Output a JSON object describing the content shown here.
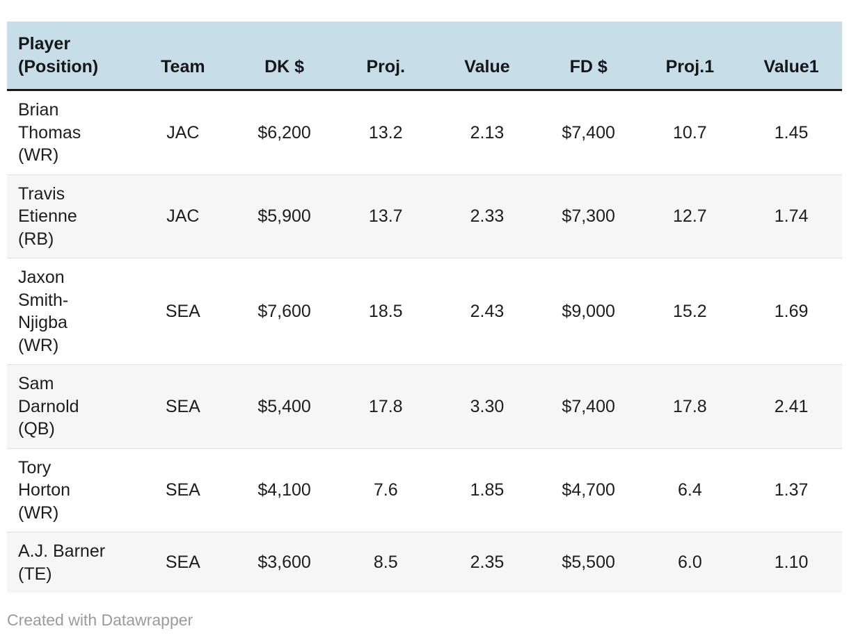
{
  "chart_data": {
    "type": "table",
    "columns": [
      "Player (Position)",
      "Team",
      "DK $",
      "Proj.",
      "Value",
      "FD $",
      "Proj.1",
      "Value1"
    ],
    "rows": [
      [
        "Brian Thomas (WR)",
        "JAC",
        "$6,200",
        "13.2",
        "2.13",
        "$7,400",
        "10.7",
        "1.45"
      ],
      [
        "Travis Etienne (RB)",
        "JAC",
        "$5,900",
        "13.7",
        "2.33",
        "$7,300",
        "12.7",
        "1.74"
      ],
      [
        "Jaxon Smith-Njigba (WR)",
        "SEA",
        "$7,600",
        "18.5",
        "2.43",
        "$9,000",
        "15.2",
        "1.69"
      ],
      [
        "Sam Darnold (QB)",
        "SEA",
        "$5,400",
        "17.8",
        "3.30",
        "$7,400",
        "17.8",
        "2.41"
      ],
      [
        "Tory Horton (WR)",
        "SEA",
        "$4,100",
        "7.6",
        "1.85",
        "$4,700",
        "6.4",
        "1.37"
      ],
      [
        "A.J. Barner (TE)",
        "SEA",
        "$3,600",
        "8.5",
        "2.35",
        "$5,500",
        "6.0",
        "1.10"
      ]
    ],
    "layout": {
      "striped_rows": true,
      "header_background": "#c7dee9",
      "numeric_alignment": "center"
    }
  },
  "footer": {
    "credit": "Created with Datawrapper"
  },
  "colors": {
    "header_bg": "#c7dee9",
    "header_border": "#1a1a1a",
    "stripe_bg": "#f6f6f6",
    "row_divider": "#e0e0e0",
    "text": "#1d1d1d",
    "credit_text": "#9b9b9b"
  }
}
